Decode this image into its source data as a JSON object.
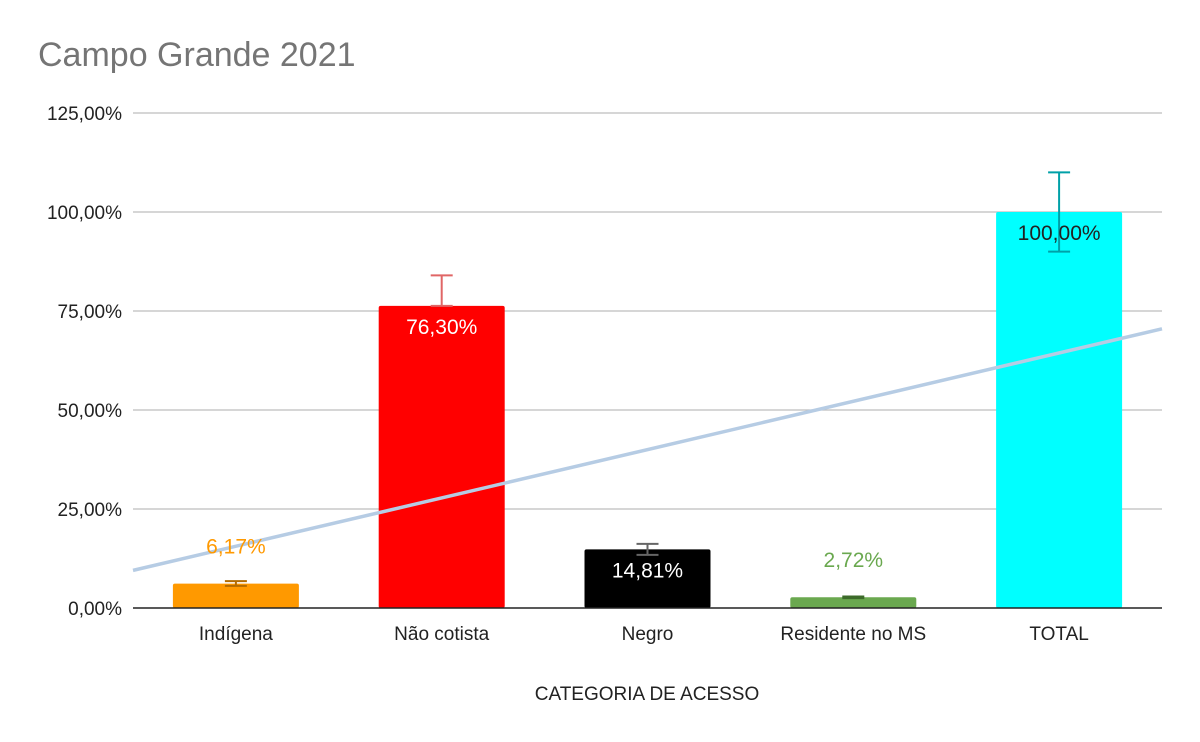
{
  "chart_data": {
    "type": "bar",
    "title": "Campo Grande 2021",
    "xlabel": "CATEGORIA DE ACESSO",
    "ylabel": "",
    "ylim": [
      0,
      125
    ],
    "yticks": [
      0,
      25,
      50,
      75,
      100,
      125
    ],
    "ytick_labels": [
      "0,00%",
      "25,00%",
      "50,00%",
      "75,00%",
      "100,00%",
      "125,00%"
    ],
    "grid": true,
    "categories": [
      "Indígena",
      "Não cotista",
      "Negro",
      "Residente no MS",
      "TOTAL"
    ],
    "values": [
      6.17,
      76.3,
      14.81,
      2.72,
      100.0
    ],
    "data_labels": [
      "6,17%",
      "76,30%",
      "14,81%",
      "2,72%",
      "100,00%"
    ],
    "data_label_position": [
      "above",
      "inside",
      "inside",
      "above",
      "inside"
    ],
    "error_bars": [
      {
        "low": 5.6,
        "high": 6.8
      },
      {
        "low": 76.3,
        "high": 84.0
      },
      {
        "low": 13.4,
        "high": 16.2
      },
      {
        "low": 2.5,
        "high": 2.9
      },
      {
        "low": 90.0,
        "high": 110.0
      }
    ],
    "colors": [
      "#FF9900",
      "#FF0000",
      "#000000",
      "#6AA84F",
      "#00FFFF"
    ],
    "label_colors": [
      "#FF9900",
      "#FFFFFF",
      "#FFFFFF",
      "#6AA84F",
      "#222222"
    ],
    "error_bar_colors": [
      "#B36B00",
      "#E06666",
      "#666666",
      "#3D6B2A",
      "#00A0A8"
    ],
    "trendline": {
      "type": "linear",
      "color": "#B6CCE4",
      "start_value": 9.5,
      "end_value": 70.5
    }
  }
}
